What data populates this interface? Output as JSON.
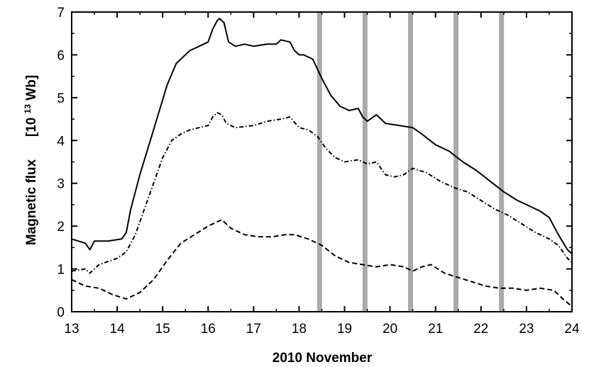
{
  "chart_data": {
    "type": "line",
    "title": "",
    "xlabel": "2010 November",
    "ylabel": {
      "text": "Magnetic flux",
      "unit_prefix": "[10",
      "unit_exponent": "13",
      "unit_suffix": " Wb]"
    },
    "xlim": [
      13,
      24
    ],
    "ylim": [
      0,
      7
    ],
    "xticks": [
      13,
      14,
      15,
      16,
      17,
      18,
      19,
      20,
      21,
      22,
      23,
      24
    ],
    "yticks": [
      0,
      1,
      2,
      3,
      4,
      5,
      6,
      7
    ],
    "grid": false,
    "legend": "none",
    "vertical_bands": [
      18.45,
      19.45,
      20.45,
      21.45,
      22.45
    ],
    "band_color": "#aaaaaa",
    "series": [
      {
        "style": "solid",
        "color": "#000000",
        "x": [
          13.0,
          13.3,
          13.4,
          13.5,
          13.8,
          14.1,
          14.2,
          14.3,
          14.5,
          14.7,
          14.9,
          15.1,
          15.3,
          15.5,
          15.6,
          15.8,
          16.0,
          16.1,
          16.2,
          16.25,
          16.35,
          16.45,
          16.6,
          16.8,
          17.0,
          17.3,
          17.5,
          17.6,
          17.8,
          17.9,
          18.0,
          18.1,
          18.3,
          18.5,
          18.7,
          18.9,
          19.1,
          19.3,
          19.4,
          19.5,
          19.7,
          19.9,
          20.2,
          20.5,
          20.7,
          21.0,
          21.3,
          21.6,
          21.9,
          22.2,
          22.5,
          22.8,
          23.1,
          23.3,
          23.5,
          23.7,
          23.9,
          24.0
        ],
        "y": [
          1.7,
          1.6,
          1.45,
          1.65,
          1.65,
          1.7,
          1.85,
          2.4,
          3.2,
          3.9,
          4.6,
          5.3,
          5.8,
          6.0,
          6.1,
          6.2,
          6.3,
          6.6,
          6.8,
          6.85,
          6.75,
          6.3,
          6.2,
          6.25,
          6.2,
          6.25,
          6.25,
          6.35,
          6.3,
          6.1,
          6.0,
          6.0,
          5.9,
          5.45,
          5.05,
          4.8,
          4.7,
          4.75,
          4.55,
          4.45,
          4.6,
          4.4,
          4.35,
          4.3,
          4.15,
          3.9,
          3.75,
          3.5,
          3.3,
          3.05,
          2.8,
          2.6,
          2.45,
          2.35,
          2.2,
          1.8,
          1.45,
          1.35
        ]
      },
      {
        "style": "dash-dot",
        "color": "#000000",
        "x": [
          13.0,
          13.3,
          13.4,
          13.6,
          14.0,
          14.2,
          14.4,
          14.6,
          14.8,
          15.0,
          15.2,
          15.4,
          15.6,
          15.8,
          16.0,
          16.1,
          16.2,
          16.3,
          16.4,
          16.6,
          17.0,
          17.3,
          17.6,
          17.8,
          18.0,
          18.2,
          18.4,
          18.6,
          18.8,
          19.0,
          19.3,
          19.5,
          19.7,
          19.9,
          20.1,
          20.3,
          20.5,
          20.8,
          21.1,
          21.4,
          21.7,
          22.0,
          22.3,
          22.6,
          22.9,
          23.2,
          23.5,
          23.7,
          23.9,
          24.0
        ],
        "y": [
          0.95,
          1.0,
          0.9,
          1.1,
          1.25,
          1.4,
          1.8,
          2.4,
          3.0,
          3.6,
          4.0,
          4.15,
          4.25,
          4.3,
          4.35,
          4.55,
          4.65,
          4.6,
          4.4,
          4.3,
          4.35,
          4.45,
          4.5,
          4.55,
          4.3,
          4.25,
          4.1,
          3.8,
          3.6,
          3.5,
          3.55,
          3.45,
          3.5,
          3.2,
          3.15,
          3.2,
          3.35,
          3.25,
          3.05,
          2.9,
          2.8,
          2.6,
          2.4,
          2.25,
          2.05,
          1.85,
          1.7,
          1.55,
          1.25,
          1.15
        ]
      },
      {
        "style": "dashed",
        "color": "#000000",
        "x": [
          13.0,
          13.3,
          13.6,
          13.9,
          14.2,
          14.5,
          14.8,
          15.1,
          15.4,
          15.7,
          16.0,
          16.2,
          16.3,
          16.5,
          16.8,
          17.1,
          17.4,
          17.7,
          17.9,
          18.2,
          18.5,
          18.8,
          19.1,
          19.4,
          19.7,
          20.0,
          20.3,
          20.5,
          20.7,
          20.9,
          21.2,
          21.5,
          21.8,
          22.1,
          22.4,
          22.7,
          23.0,
          23.3,
          23.6,
          23.8,
          24.0
        ],
        "y": [
          0.75,
          0.6,
          0.55,
          0.4,
          0.3,
          0.45,
          0.75,
          1.2,
          1.6,
          1.8,
          2.0,
          2.1,
          2.15,
          1.95,
          1.8,
          1.75,
          1.75,
          1.8,
          1.8,
          1.7,
          1.55,
          1.3,
          1.15,
          1.1,
          1.05,
          1.1,
          1.05,
          0.95,
          1.05,
          1.1,
          0.9,
          0.8,
          0.7,
          0.6,
          0.55,
          0.55,
          0.5,
          0.55,
          0.5,
          0.3,
          0.12
        ]
      }
    ]
  }
}
